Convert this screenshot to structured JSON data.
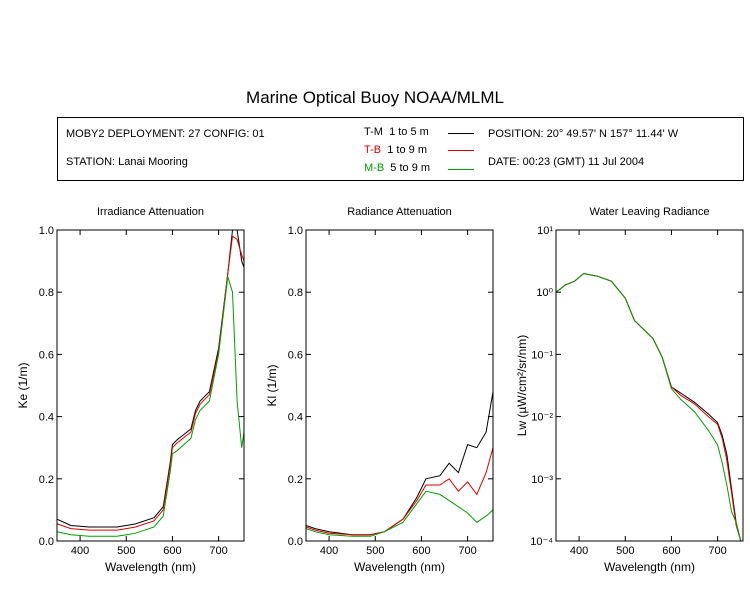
{
  "header": {
    "title": "Marine Optical Buoy NOAA/MLML",
    "deployment": "MOBY2 DEPLOYMENT: 27 CONFIG: 01",
    "station": "STATION: Lanai Mooring",
    "position": "POSITION: 20° 49.57' N   157° 11.44' W",
    "date": "DATE: 00:23 (GMT) 11 Jul 2004"
  },
  "legend": [
    {
      "code": "T-M",
      "range": "1 to 5  m",
      "color": "#000000"
    },
    {
      "code": "T-B",
      "range": "1 to 9  m",
      "color": "#e00000"
    },
    {
      "code": "M-B",
      "range": "5 to 9  m",
      "color": "#00a000"
    }
  ],
  "chart_data": [
    {
      "type": "line",
      "title": "Irradiance Attenuation",
      "xlabel": "Wavelength (nm)",
      "ylabel": "Ke  (1/m)",
      "xlim": [
        350,
        755
      ],
      "ylim": [
        0,
        1.0
      ],
      "xticks": [
        400,
        500,
        600,
        700
      ],
      "yticks": [
        "0.0",
        "0.2",
        "0.4",
        "0.6",
        "0.8",
        "1.0"
      ],
      "x": [
        350,
        380,
        420,
        480,
        500,
        520,
        560,
        580,
        595,
        600,
        610,
        640,
        650,
        660,
        680,
        700,
        720,
        730,
        740,
        750,
        755
      ],
      "series": [
        {
          "name": "T-M",
          "color": "#000000",
          "values": [
            0.07,
            0.05,
            0.045,
            0.045,
            0.05,
            0.055,
            0.075,
            0.11,
            0.25,
            0.31,
            0.325,
            0.36,
            0.42,
            0.45,
            0.48,
            0.62,
            0.86,
            1.0,
            1.0,
            0.9,
            0.88
          ]
        },
        {
          "name": "T-B",
          "color": "#e00000",
          "values": [
            0.055,
            0.04,
            0.035,
            0.035,
            0.04,
            0.045,
            0.065,
            0.1,
            0.24,
            0.3,
            0.315,
            0.35,
            0.41,
            0.44,
            0.47,
            0.61,
            0.86,
            0.98,
            0.97,
            0.92,
            0.9
          ]
        },
        {
          "name": "M-B",
          "color": "#00a000",
          "values": [
            0.03,
            0.02,
            0.015,
            0.015,
            0.02,
            0.025,
            0.045,
            0.08,
            0.22,
            0.28,
            0.29,
            0.33,
            0.39,
            0.42,
            0.45,
            0.6,
            0.85,
            0.8,
            0.45,
            0.3,
            0.35
          ]
        }
      ]
    },
    {
      "type": "line",
      "title": "Radiance Attenuation",
      "xlabel": "Wavelength (nm)",
      "ylabel": "Kl  (1/m)",
      "xlim": [
        350,
        755
      ],
      "ylim": [
        0,
        1.0
      ],
      "xticks": [
        400,
        500,
        600,
        700
      ],
      "yticks": [
        "0.0",
        "0.2",
        "0.4",
        "0.6",
        "0.8",
        "1.0"
      ],
      "x": [
        350,
        370,
        400,
        450,
        490,
        520,
        560,
        590,
        610,
        640,
        660,
        680,
        700,
        720,
        740,
        755
      ],
      "series": [
        {
          "name": "T-M",
          "color": "#000000",
          "values": [
            0.05,
            0.04,
            0.03,
            0.02,
            0.02,
            0.03,
            0.07,
            0.14,
            0.2,
            0.21,
            0.25,
            0.22,
            0.31,
            0.3,
            0.35,
            0.48
          ]
        },
        {
          "name": "T-B",
          "color": "#e00000",
          "values": [
            0.045,
            0.035,
            0.025,
            0.02,
            0.02,
            0.03,
            0.07,
            0.13,
            0.18,
            0.18,
            0.2,
            0.16,
            0.19,
            0.15,
            0.22,
            0.3
          ]
        },
        {
          "name": "M-B",
          "color": "#00a000",
          "values": [
            0.04,
            0.03,
            0.02,
            0.015,
            0.015,
            0.03,
            0.06,
            0.12,
            0.16,
            0.15,
            0.13,
            0.11,
            0.09,
            0.06,
            0.08,
            0.1
          ]
        }
      ]
    },
    {
      "type": "line",
      "title": "Water Leaving Radiance",
      "xlabel": "Wavelength (nm)",
      "ylabel": "Lw  (µW/cm²/sr/nm)",
      "xscale": "linear",
      "yscale": "log",
      "xlim": [
        350,
        755
      ],
      "ylim": [
        0.0001,
        10
      ],
      "xticks": [
        400,
        500,
        600,
        700
      ],
      "yticks": [
        "10¹",
        "10⁰",
        "10⁻¹",
        "10⁻²",
        "10⁻³",
        "10⁻⁴"
      ],
      "ytick_values": [
        10,
        1,
        0.1,
        0.01,
        0.001,
        0.0001
      ],
      "x": [
        350,
        370,
        390,
        410,
        440,
        470,
        500,
        520,
        560,
        580,
        600,
        620,
        650,
        680,
        700,
        710,
        720,
        730,
        740,
        750
      ],
      "series": [
        {
          "name": "T-M",
          "color": "#000000",
          "values": [
            1.0,
            1.3,
            1.5,
            2.0,
            1.8,
            1.5,
            0.8,
            0.35,
            0.18,
            0.09,
            0.03,
            0.024,
            0.017,
            0.011,
            0.008,
            0.005,
            0.0025,
            0.0007,
            0.0002,
            0.0001
          ]
        },
        {
          "name": "T-B",
          "color": "#e00000",
          "values": [
            1.0,
            1.3,
            1.5,
            2.0,
            1.8,
            1.5,
            0.8,
            0.35,
            0.18,
            0.09,
            0.03,
            0.022,
            0.016,
            0.01,
            0.0075,
            0.0045,
            0.002,
            0.0006,
            0.00018,
            0.0001
          ]
        },
        {
          "name": "M-B",
          "color": "#00a000",
          "values": [
            1.0,
            1.3,
            1.5,
            2.0,
            1.8,
            1.5,
            0.8,
            0.35,
            0.18,
            0.09,
            0.028,
            0.019,
            0.012,
            0.006,
            0.0035,
            0.0018,
            0.0008,
            0.0003,
            0.0002,
            0.0001
          ]
        }
      ]
    }
  ]
}
